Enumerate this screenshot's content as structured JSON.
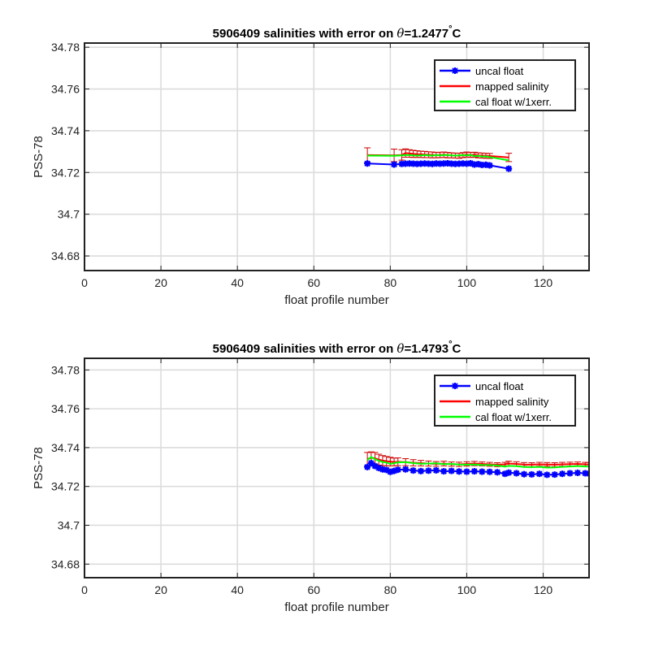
{
  "chart_data": [
    {
      "type": "line",
      "title_prefix": "5906409 salinities with error on ",
      "title_theta": "θ",
      "title_value": "=1.2477",
      "title_degree": "°",
      "title_unit": "C",
      "xlabel": "float profile number",
      "ylabel": "PSS-78",
      "xlim": [
        0,
        132
      ],
      "ylim": [
        34.673,
        34.782
      ],
      "xticks": [
        "0",
        "20",
        "40",
        "60",
        "80",
        "100",
        "120"
      ],
      "yticks": [
        "34.68",
        "34.7",
        "34.72",
        "34.74",
        "34.76",
        "34.78"
      ],
      "grid": true,
      "legend_position": "top-right",
      "legend": [
        "uncal float",
        "mapped salinity",
        "cal float w/1xerr."
      ],
      "colors": {
        "uncal": "#0000ff",
        "mapped": "#ff0000",
        "cal": "#00ff00",
        "errorbar": "#cc0000"
      },
      "series": {
        "uncal": {
          "x": [
            74,
            81,
            83,
            84,
            85,
            86,
            87,
            88,
            89,
            90,
            91,
            92,
            93,
            94,
            95,
            96,
            97,
            98,
            99,
            100,
            101,
            102,
            103,
            104,
            105,
            106,
            111
          ],
          "y": [
            34.7243,
            34.7238,
            34.7241,
            34.7242,
            34.7243,
            34.7242,
            34.7241,
            34.7242,
            34.7243,
            34.7242,
            34.7241,
            34.7243,
            34.7242,
            34.7243,
            34.7244,
            34.7242,
            34.7241,
            34.7242,
            34.7243,
            34.7242,
            34.7244,
            34.7238,
            34.724,
            34.7236,
            34.7237,
            34.7234,
            34.7218
          ]
        },
        "mapped": {
          "x": [
            74,
            81,
            83,
            84,
            85,
            86,
            87,
            88,
            89,
            90,
            91,
            92,
            93,
            94,
            95,
            96,
            97,
            98,
            99,
            100,
            101,
            102,
            103,
            104,
            105,
            106,
            111
          ],
          "y": [
            34.7283,
            34.7282,
            34.7284,
            34.7293,
            34.7291,
            34.7289,
            34.7288,
            34.7287,
            34.7286,
            34.7285,
            34.7284,
            34.7283,
            34.7284,
            34.7285,
            34.7283,
            34.7282,
            34.7281,
            34.728,
            34.7283,
            34.7286,
            34.7284,
            34.7285,
            34.7282,
            34.7281,
            34.728,
            34.7279,
            34.7272
          ],
          "err": [
            0.0035,
            0.003,
            0.0025,
            0.002,
            0.0018,
            0.0017,
            0.0016,
            0.0015,
            0.0015,
            0.0014,
            0.0014,
            0.0013,
            0.0013,
            0.0013,
            0.0013,
            0.0012,
            0.0012,
            0.0012,
            0.0012,
            0.0012,
            0.0012,
            0.0012,
            0.0012,
            0.0012,
            0.0012,
            0.0012,
            0.002
          ]
        },
        "cal": {
          "x": [
            74,
            81,
            83,
            84,
            85,
            86,
            87,
            88,
            89,
            90,
            91,
            92,
            93,
            94,
            95,
            96,
            97,
            98,
            99,
            100,
            101,
            102,
            103,
            104,
            105,
            106,
            111
          ],
          "y": [
            34.7281,
            34.728,
            34.7282,
            34.7283,
            34.7283,
            34.7282,
            34.7281,
            34.7282,
            34.7283,
            34.7282,
            34.7281,
            34.7283,
            34.7282,
            34.7283,
            34.7284,
            34.7282,
            34.7281,
            34.7282,
            34.7283,
            34.7282,
            34.7284,
            34.7278,
            34.728,
            34.7276,
            34.7277,
            34.7274,
            34.7258
          ]
        }
      }
    },
    {
      "type": "line",
      "title_prefix": "5906409 salinities with error on ",
      "title_theta": "θ",
      "title_value": "=1.4793",
      "title_degree": "°",
      "title_unit": "C",
      "xlabel": "float profile number",
      "ylabel": "PSS-78",
      "xlim": [
        0,
        132
      ],
      "ylim": [
        34.673,
        34.786
      ],
      "xticks": [
        "0",
        "20",
        "40",
        "60",
        "80",
        "100",
        "120"
      ],
      "yticks": [
        "34.68",
        "34.7",
        "34.72",
        "34.74",
        "34.76",
        "34.78"
      ],
      "grid": true,
      "legend_position": "top-right",
      "legend": [
        "uncal float",
        "mapped salinity",
        "cal float w/1xerr."
      ],
      "colors": {
        "uncal": "#0000ff",
        "mapped": "#ff0000",
        "cal": "#00ff00",
        "errorbar": "#cc0000"
      },
      "series": {
        "uncal": {
          "x": [
            74,
            75,
            76,
            77,
            78,
            79,
            80,
            81,
            82,
            84,
            86,
            88,
            90,
            92,
            94,
            96,
            98,
            100,
            102,
            104,
            106,
            108,
            110,
            111,
            113,
            115,
            117,
            119,
            121,
            123,
            125,
            127,
            129,
            131,
            132
          ],
          "y": [
            34.73,
            34.732,
            34.7305,
            34.7295,
            34.7288,
            34.7285,
            34.7275,
            34.728,
            34.7286,
            34.7288,
            34.7282,
            34.7279,
            34.7281,
            34.7283,
            34.7278,
            34.728,
            34.7277,
            34.7276,
            34.7278,
            34.7276,
            34.7275,
            34.7273,
            34.7265,
            34.7271,
            34.7268,
            34.7263,
            34.7262,
            34.7265,
            34.726,
            34.7261,
            34.7265,
            34.7268,
            34.727,
            34.7268,
            34.7266
          ]
        },
        "mapped": {
          "x": [
            74,
            75,
            76,
            77,
            78,
            79,
            80,
            81,
            82,
            84,
            86,
            88,
            90,
            92,
            94,
            96,
            98,
            100,
            102,
            104,
            106,
            108,
            110,
            111,
            113,
            115,
            117,
            119,
            121,
            123,
            125,
            127,
            129,
            131,
            132
          ],
          "y": [
            34.734,
            34.7348,
            34.7345,
            34.7338,
            34.7333,
            34.733,
            34.7328,
            34.7326,
            34.7327,
            34.7325,
            34.7322,
            34.732,
            34.7318,
            34.7316,
            34.7318,
            34.7315,
            34.7314,
            34.7316,
            34.7318,
            34.7316,
            34.7314,
            34.7312,
            34.7314,
            34.7318,
            34.7316,
            34.7313,
            34.7312,
            34.7314,
            34.7313,
            34.7312,
            34.7314,
            34.7315,
            34.7316,
            34.7314,
            34.7313
          ],
          "err": [
            0.0035,
            0.003,
            0.003,
            0.0028,
            0.0026,
            0.0024,
            0.0022,
            0.002,
            0.002,
            0.0018,
            0.0016,
            0.0014,
            0.0013,
            0.0012,
            0.0012,
            0.0011,
            0.0011,
            0.0011,
            0.0011,
            0.001,
            0.001,
            0.001,
            0.001,
            0.0012,
            0.0011,
            0.001,
            0.001,
            0.001,
            0.001,
            0.001,
            0.001,
            0.001,
            0.001,
            0.001,
            0.001
          ]
        },
        "cal": {
          "x": [
            74,
            75,
            76,
            77,
            78,
            79,
            80,
            81,
            82,
            84,
            86,
            88,
            90,
            92,
            94,
            96,
            98,
            100,
            102,
            104,
            106,
            108,
            110,
            111,
            113,
            115,
            117,
            119,
            121,
            123,
            125,
            127,
            129,
            131,
            132
          ],
          "y": [
            34.7335,
            34.7352,
            34.734,
            34.7332,
            34.7326,
            34.7323,
            34.7316,
            34.732,
            34.7324,
            34.7325,
            34.732,
            34.7317,
            34.7318,
            34.7319,
            34.7315,
            34.7316,
            34.7313,
            34.7312,
            34.7313,
            34.7311,
            34.731,
            34.7308,
            34.7302,
            34.7306,
            34.7304,
            34.73,
            34.7299,
            34.7301,
            34.7297,
            34.7298,
            34.7301,
            34.7303,
            34.7305,
            34.7303,
            34.7302
          ]
        }
      }
    }
  ]
}
